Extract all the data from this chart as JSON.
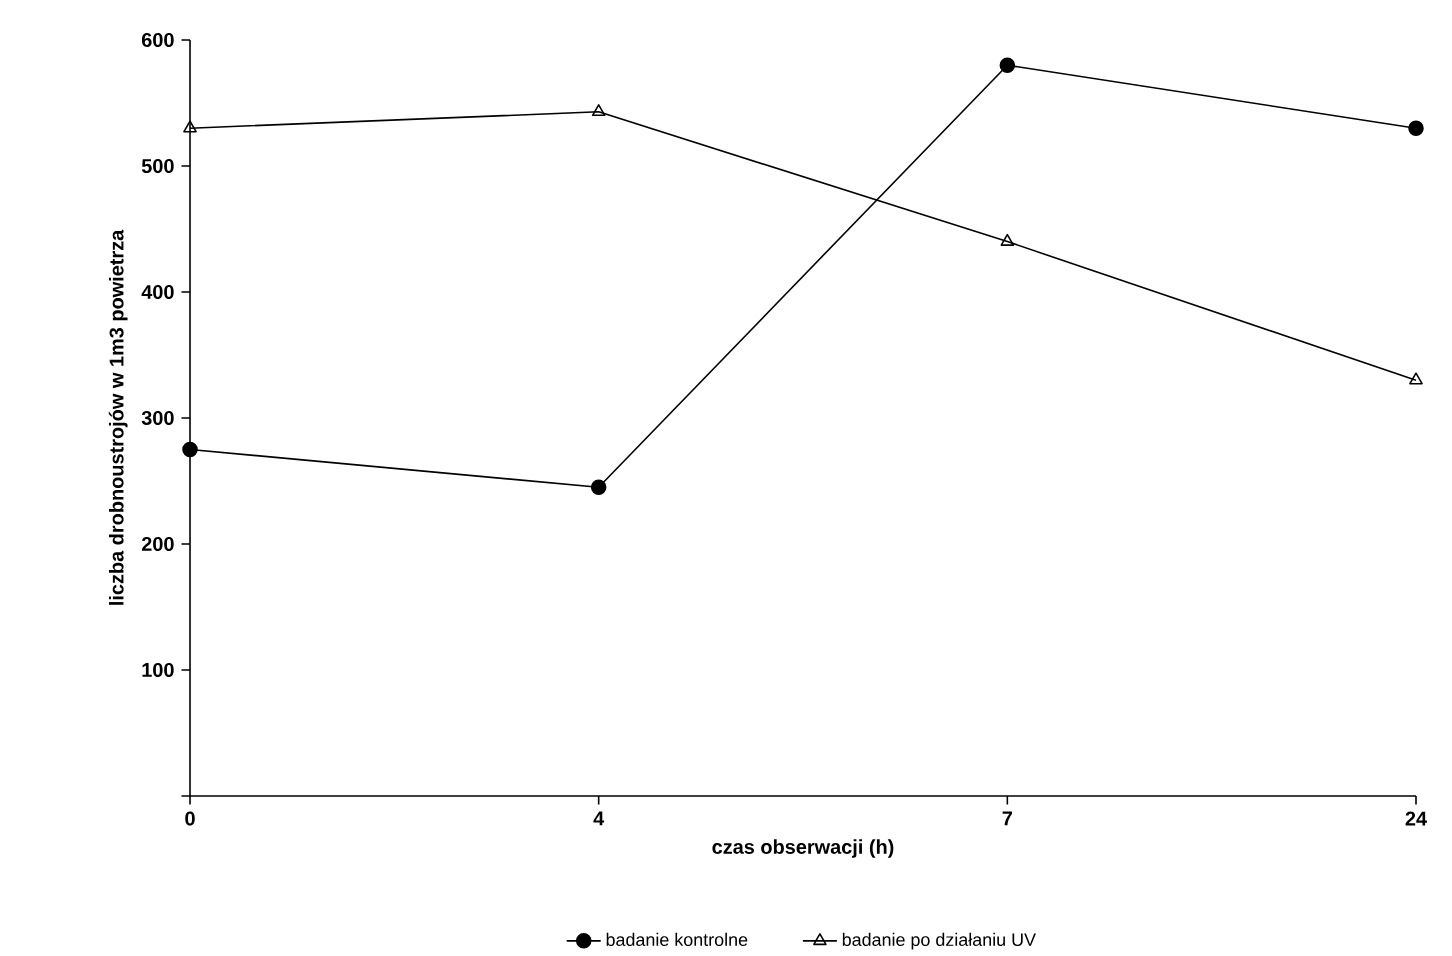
{
  "chart_data": {
    "type": "line",
    "xlabel": "czas obserwacji (h)",
    "ylabel": "liczba drobnoustrojów w 1m3 powietrza",
    "categories": [
      "0",
      "4",
      "7",
      "24"
    ],
    "series": [
      {
        "name": "badanie kontrolne",
        "color": "#000000",
        "marker": "circle",
        "values": [
          275,
          245,
          580,
          530
        ]
      },
      {
        "name": "badanie po działaniu UV",
        "color": "#000000",
        "marker": "triangle",
        "values": [
          530,
          543,
          440,
          330
        ]
      }
    ],
    "ylim": [
      0,
      600
    ],
    "yticks": [
      {
        "value": 0,
        "label": null
      },
      100,
      200,
      300,
      400,
      500,
      600
    ],
    "grid": false,
    "legend": "bottom",
    "line_style": "solid"
  }
}
